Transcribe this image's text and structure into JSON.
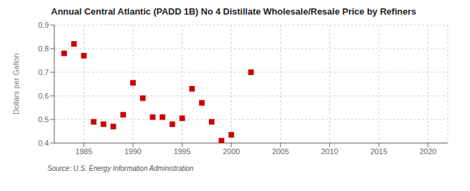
{
  "chart_data": {
    "type": "scatter",
    "title": "Annual Central Atlantic (PADD 1B) No 4 Distillate Wholesale/Resale Price by Refiners",
    "ylabel": "Dollars per Gallon",
    "annotation": "Source: U.S. Energy Information Administration",
    "x": [
      1983,
      1984,
      1985,
      1986,
      1987,
      1988,
      1989,
      1990,
      1991,
      1992,
      1993,
      1994,
      1995,
      1996,
      1997,
      1998,
      1999,
      2000,
      2002
    ],
    "values": [
      0.78,
      0.82,
      0.77,
      0.49,
      0.48,
      0.47,
      0.52,
      0.655,
      0.59,
      0.51,
      0.51,
      0.48,
      0.505,
      0.63,
      0.57,
      0.49,
      0.41,
      0.435,
      0.7
    ],
    "color": "#cc0000",
    "marker": "square",
    "xlim": [
      1982,
      2022
    ],
    "ylim": [
      0.4,
      0.9
    ],
    "xticks": [
      1985,
      1990,
      1995,
      2000,
      2005,
      2010,
      2015,
      2020
    ],
    "yticks": [
      0.4,
      0.5,
      0.6,
      0.7,
      0.8,
      0.9
    ],
    "grid": true
  }
}
